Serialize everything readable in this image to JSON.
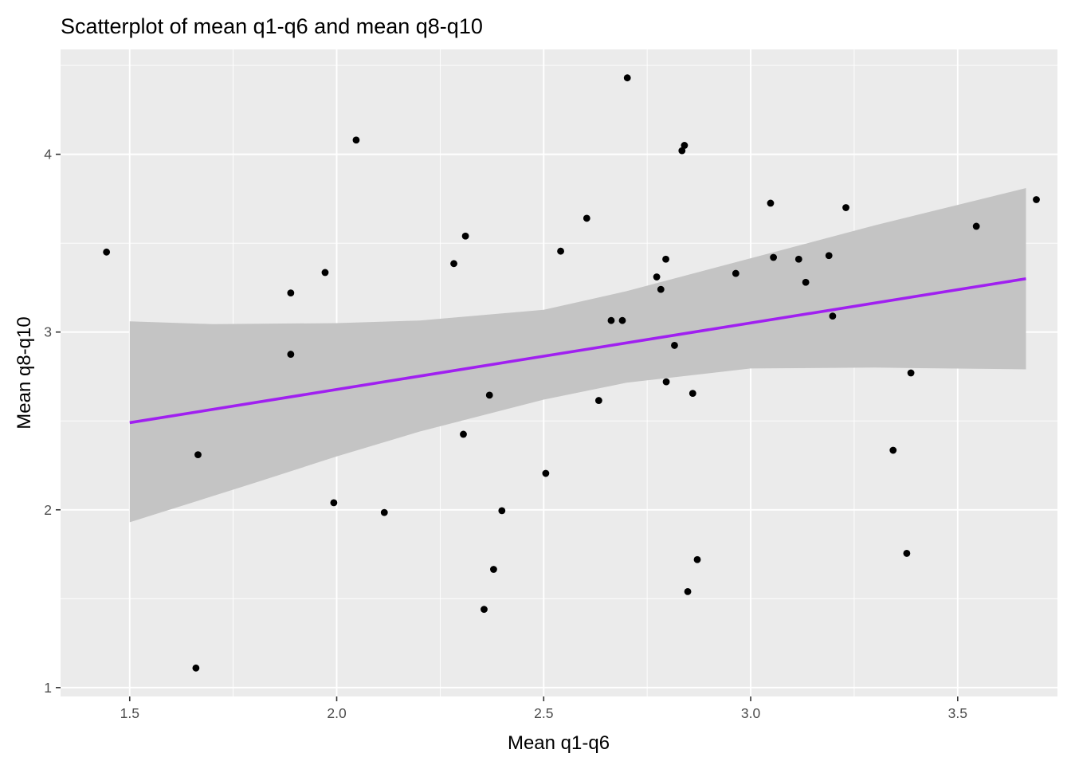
{
  "chart_data": {
    "type": "scatter",
    "title": "Scatterplot of mean q1-q6 and mean q8-q10",
    "xlabel": "Mean q1-q6",
    "ylabel": "Mean q8-q10",
    "xlim": [
      1.333,
      3.741
    ],
    "ylim": [
      0.95,
      4.59
    ],
    "x_ticks": [
      1.5,
      2.0,
      2.5,
      3.0,
      3.5
    ],
    "x_tick_labels": [
      "1.5",
      "2.0",
      "2.5",
      "3.0",
      "3.5"
    ],
    "y_ticks": [
      1,
      2,
      3,
      4
    ],
    "y_tick_labels": [
      "1",
      "2",
      "3",
      "4"
    ],
    "grid": true,
    "colors": {
      "panel_background": "#ebebeb",
      "grid": "#ffffff",
      "points": "#000000",
      "trend_line": "#a020f0",
      "confidence_band": "#c4c4c4"
    },
    "points": [
      {
        "x": 1.444,
        "y": 3.45
      },
      {
        "x": 1.66,
        "y": 1.11
      },
      {
        "x": 1.665,
        "y": 2.31
      },
      {
        "x": 1.889,
        "y": 3.22
      },
      {
        "x": 1.889,
        "y": 2.875
      },
      {
        "x": 1.972,
        "y": 3.335
      },
      {
        "x": 1.993,
        "y": 2.04
      },
      {
        "x": 2.047,
        "y": 4.08
      },
      {
        "x": 2.115,
        "y": 1.985
      },
      {
        "x": 2.283,
        "y": 3.385
      },
      {
        "x": 2.306,
        "y": 2.425
      },
      {
        "x": 2.311,
        "y": 3.54
      },
      {
        "x": 2.356,
        "y": 1.44
      },
      {
        "x": 2.369,
        "y": 2.645
      },
      {
        "x": 2.379,
        "y": 1.665
      },
      {
        "x": 2.399,
        "y": 1.995
      },
      {
        "x": 2.505,
        "y": 2.205
      },
      {
        "x": 2.541,
        "y": 3.455
      },
      {
        "x": 2.604,
        "y": 3.64
      },
      {
        "x": 2.633,
        "y": 2.615
      },
      {
        "x": 2.663,
        "y": 3.065
      },
      {
        "x": 2.69,
        "y": 3.065
      },
      {
        "x": 2.702,
        "y": 4.43
      },
      {
        "x": 2.773,
        "y": 3.31
      },
      {
        "x": 2.783,
        "y": 3.24
      },
      {
        "x": 2.795,
        "y": 3.41
      },
      {
        "x": 2.796,
        "y": 2.72
      },
      {
        "x": 2.816,
        "y": 2.925
      },
      {
        "x": 2.834,
        "y": 4.02
      },
      {
        "x": 2.84,
        "y": 4.05
      },
      {
        "x": 2.848,
        "y": 1.54
      },
      {
        "x": 2.86,
        "y": 2.655
      },
      {
        "x": 2.871,
        "y": 1.72
      },
      {
        "x": 2.964,
        "y": 3.33
      },
      {
        "x": 3.048,
        "y": 3.725
      },
      {
        "x": 3.055,
        "y": 3.42
      },
      {
        "x": 3.116,
        "y": 3.41
      },
      {
        "x": 3.133,
        "y": 3.28
      },
      {
        "x": 3.189,
        "y": 3.43
      },
      {
        "x": 3.198,
        "y": 3.09
      },
      {
        "x": 3.23,
        "y": 3.7
      },
      {
        "x": 3.344,
        "y": 2.335
      },
      {
        "x": 3.377,
        "y": 1.755
      },
      {
        "x": 3.387,
        "y": 2.77
      },
      {
        "x": 3.545,
        "y": 3.595
      },
      {
        "x": 3.69,
        "y": 3.745
      }
    ],
    "trend_line": {
      "method": "linear",
      "x_range": [
        1.5,
        3.665
      ],
      "y_range": [
        2.49,
        3.3
      ],
      "band_upper": [
        [
          1.5,
          3.06
        ],
        [
          1.7,
          3.045
        ],
        [
          2.0,
          3.05
        ],
        [
          2.2,
          3.065
        ],
        [
          2.5,
          3.125
        ],
        [
          2.7,
          3.23
        ],
        [
          3.0,
          3.415
        ],
        [
          3.3,
          3.6
        ],
        [
          3.665,
          3.81
        ]
      ],
      "band_lower": [
        [
          1.5,
          1.93
        ],
        [
          1.8,
          2.15
        ],
        [
          2.0,
          2.3
        ],
        [
          2.2,
          2.44
        ],
        [
          2.5,
          2.62
        ],
        [
          2.7,
          2.715
        ],
        [
          3.0,
          2.795
        ],
        [
          3.3,
          2.8
        ],
        [
          3.665,
          2.79
        ]
      ]
    }
  }
}
